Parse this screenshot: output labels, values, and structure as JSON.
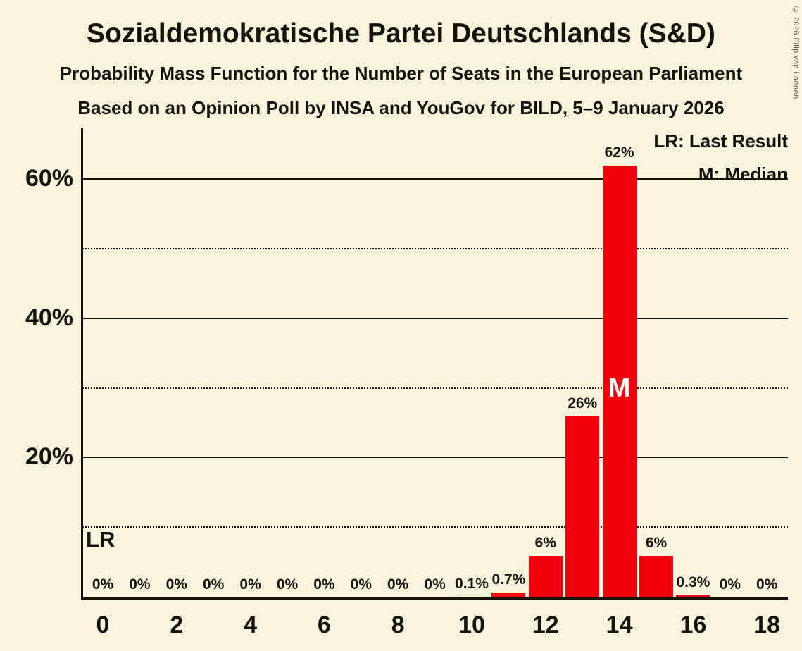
{
  "title": "Sozialdemokratische Partei Deutschlands (S&D)",
  "subtitle": "Probability Mass Function for the Number of Seats in the European Parliament",
  "source_line": "Based on an Opinion Poll by INSA and YouGov for BILD, 5–9 January 2026",
  "copyright": "© 2026 Filip van Laenen",
  "legend": {
    "last_result": "LR: Last Result",
    "median": "M: Median"
  },
  "annotations": {
    "last_result": "LR",
    "median": "M"
  },
  "colors": {
    "background": "#FBF4DC",
    "bar": "#F3000E",
    "text": "#14130B",
    "median_text": "#FFFFFF"
  },
  "chart_data": {
    "type": "bar",
    "title": "Sozialdemokratische Partei Deutschlands (S&D)",
    "xlabel": "",
    "ylabel": "",
    "x": [
      0,
      1,
      2,
      3,
      4,
      5,
      6,
      7,
      8,
      9,
      10,
      11,
      12,
      13,
      14,
      15,
      16,
      17,
      18
    ],
    "values": [
      0,
      0,
      0,
      0,
      0,
      0,
      0,
      0,
      0,
      0,
      0.1,
      0.7,
      6,
      26,
      62,
      6,
      0.3,
      0,
      0
    ],
    "labels": [
      "0%",
      "0%",
      "0%",
      "0%",
      "0%",
      "0%",
      "0%",
      "0%",
      "0%",
      "0%",
      "0.1%",
      "0.7%",
      "6%",
      "26%",
      "62%",
      "6%",
      "0.3%",
      "0%",
      "0%"
    ],
    "median_seat": 14,
    "ylim": [
      0,
      67.4
    ],
    "gridlines": {
      "solid": [
        20,
        40,
        60
      ],
      "dotted": [
        10,
        30,
        50
      ]
    },
    "x_ticks": [
      {
        "value": 0,
        "label": "0"
      },
      {
        "value": 2,
        "label": "2"
      },
      {
        "value": 4,
        "label": "4"
      },
      {
        "value": 6,
        "label": "6"
      },
      {
        "value": 8,
        "label": "8"
      },
      {
        "value": 10,
        "label": "10"
      },
      {
        "value": 12,
        "label": "12"
      },
      {
        "value": 14,
        "label": "14"
      },
      {
        "value": 16,
        "label": "16"
      },
      {
        "value": 18,
        "label": "18"
      }
    ],
    "y_ticks": [
      {
        "value": 20,
        "label": "20%"
      },
      {
        "value": 40,
        "label": "40%"
      },
      {
        "value": 60,
        "label": "60%"
      }
    ],
    "legend_position": "top-right"
  }
}
